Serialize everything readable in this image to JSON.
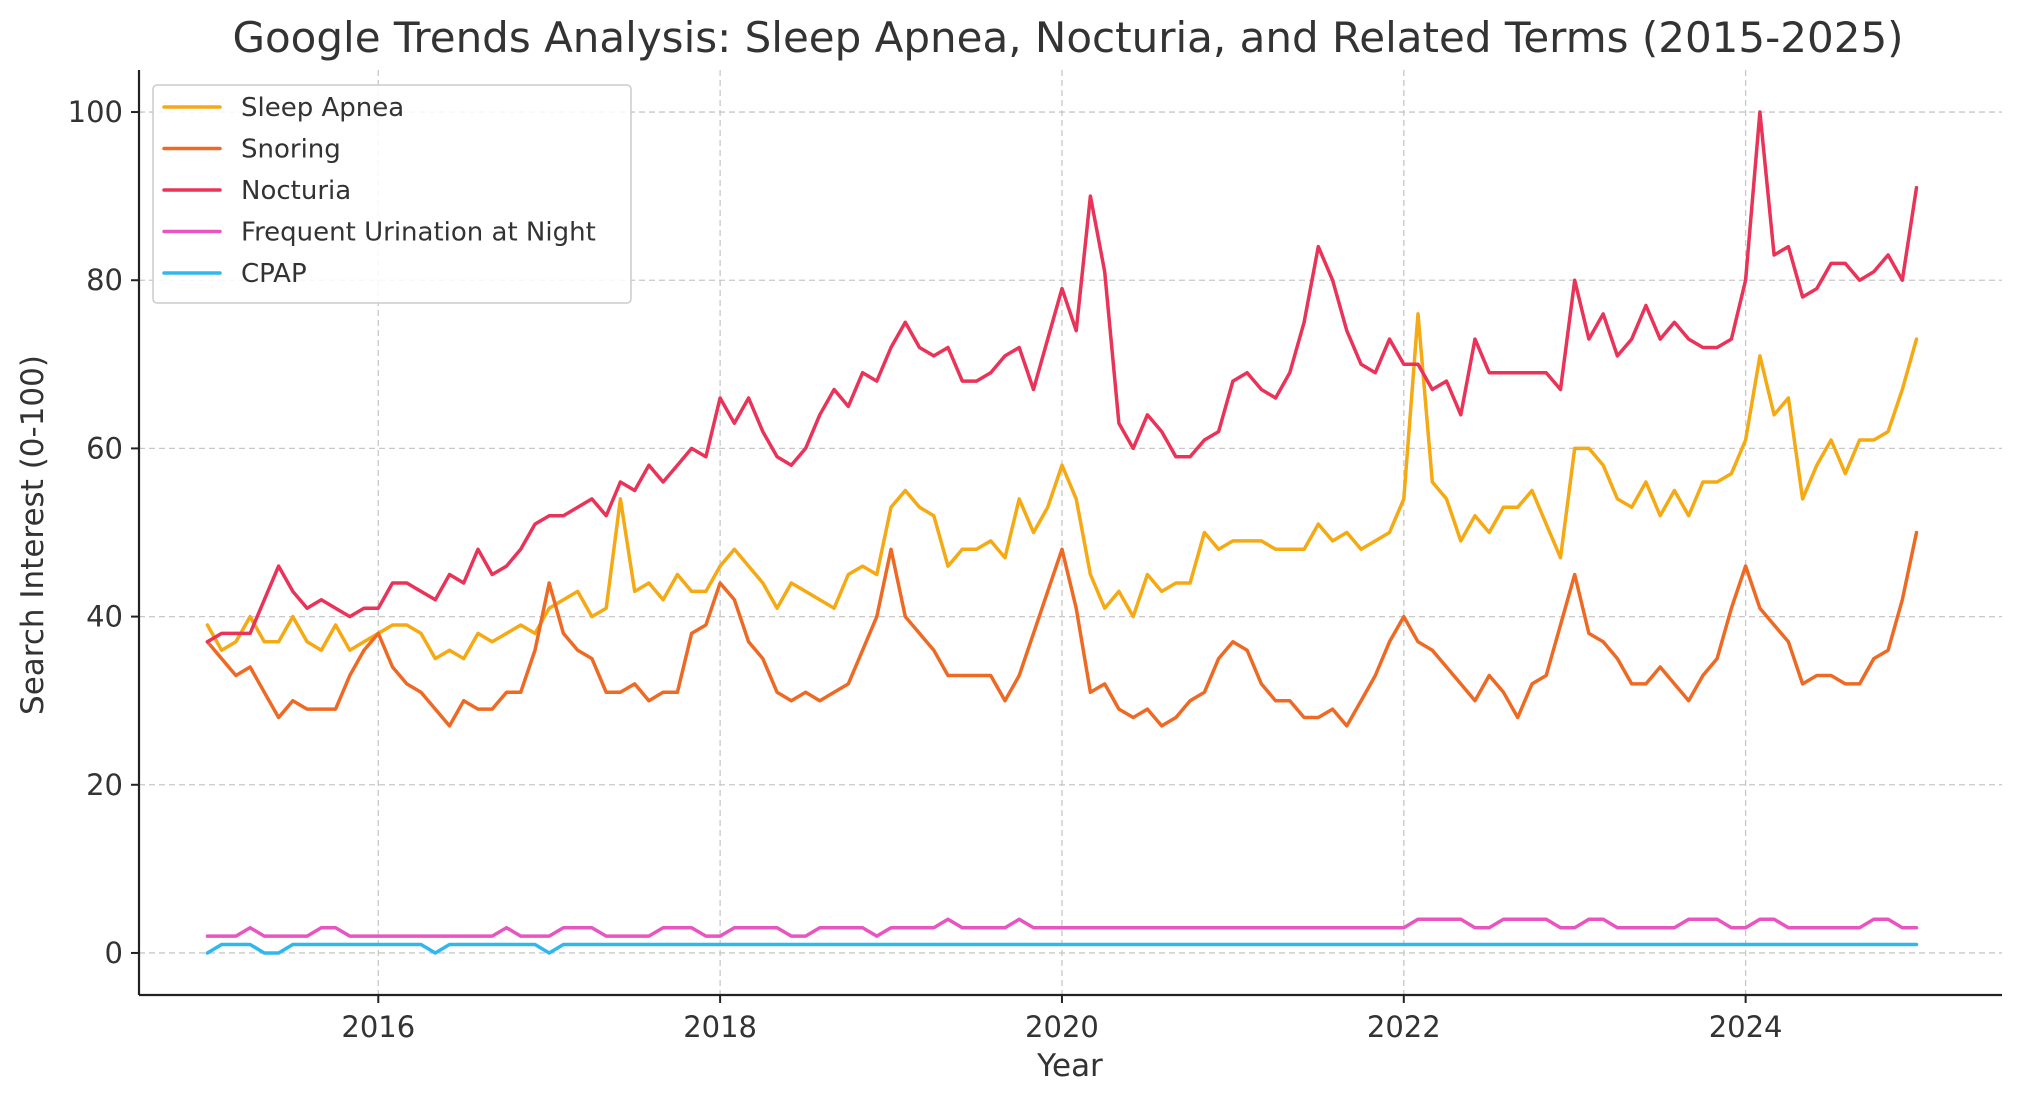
{
  "chart_data": {
    "type": "line",
    "title": "Google Trends Analysis: Sleep Apnea, Nocturia, and Related Terms (2015-2025)",
    "xlabel": "Year",
    "ylabel": "Search Interest (0-100)",
    "xlim": [
      2014.6,
      2025.5
    ],
    "ylim": [
      -5,
      105
    ],
    "x_start": 2015.0,
    "x_step": 0.0833333,
    "x_ticks": [
      2016,
      2018,
      2020,
      2022,
      2024
    ],
    "x_tick_labels": [
      "2016",
      "2018",
      "2020",
      "2022",
      "2024"
    ],
    "y_ticks": [
      0,
      20,
      40,
      60,
      80,
      100
    ],
    "y_tick_labels": [
      "0",
      "20",
      "40",
      "60",
      "80",
      "100"
    ],
    "grid": true,
    "legend_position": "upper-left",
    "series": [
      {
        "name": "Sleep Apnea",
        "color": "#F5A913",
        "values": [
          39,
          36,
          37,
          40,
          37,
          37,
          40,
          37,
          36,
          39,
          36,
          37,
          38,
          39,
          39,
          38,
          35,
          36,
          35,
          38,
          37,
          38,
          39,
          38,
          41,
          42,
          43,
          40,
          41,
          54,
          43,
          44,
          42,
          45,
          43,
          43,
          46,
          48,
          46,
          44,
          41,
          44,
          43,
          42,
          41,
          45,
          46,
          45,
          53,
          55,
          53,
          52,
          46,
          48,
          48,
          49,
          47,
          54,
          50,
          53,
          58,
          54,
          45,
          41,
          43,
          40,
          45,
          43,
          44,
          44,
          50,
          48,
          49,
          49,
          49,
          48,
          48,
          48,
          51,
          49,
          50,
          48,
          49,
          50,
          54,
          76,
          56,
          54,
          49,
          52,
          50,
          53,
          53,
          55,
          51,
          47,
          60,
          60,
          58,
          54,
          53,
          56,
          52,
          55,
          52,
          56,
          56,
          57,
          61,
          71,
          64,
          66,
          54,
          58,
          61,
          57,
          61,
          61,
          62,
          67,
          73
        ]
      },
      {
        "name": "Snoring",
        "color": "#EE6A24",
        "values": [
          37,
          35,
          33,
          34,
          31,
          28,
          30,
          29,
          29,
          29,
          33,
          36,
          38,
          34,
          32,
          31,
          29,
          27,
          30,
          29,
          29,
          31,
          31,
          36,
          44,
          38,
          36,
          35,
          31,
          31,
          32,
          30,
          31,
          31,
          38,
          39,
          44,
          42,
          37,
          35,
          31,
          30,
          31,
          30,
          31,
          32,
          36,
          40,
          48,
          40,
          38,
          36,
          33,
          33,
          33,
          33,
          30,
          33,
          38,
          43,
          48,
          41,
          31,
          32,
          29,
          28,
          29,
          27,
          28,
          30,
          31,
          35,
          37,
          36,
          32,
          30,
          30,
          28,
          28,
          29,
          27,
          30,
          33,
          37,
          40,
          37,
          36,
          34,
          32,
          30,
          33,
          31,
          28,
          32,
          33,
          39,
          45,
          38,
          37,
          35,
          32,
          32,
          34,
          32,
          30,
          33,
          35,
          41,
          46,
          41,
          39,
          37,
          32,
          33,
          33,
          32,
          32,
          35,
          36,
          42,
          50
        ]
      },
      {
        "name": "Nocturia",
        "color": "#E93358",
        "values": [
          37,
          38,
          38,
          38,
          42,
          46,
          43,
          41,
          42,
          41,
          40,
          41,
          41,
          44,
          44,
          43,
          42,
          45,
          44,
          48,
          45,
          46,
          48,
          51,
          52,
          52,
          53,
          54,
          52,
          56,
          55,
          58,
          56,
          58,
          60,
          59,
          66,
          63,
          66,
          62,
          59,
          58,
          60,
          64,
          67,
          65,
          69,
          68,
          72,
          75,
          72,
          71,
          72,
          68,
          68,
          69,
          71,
          72,
          67,
          73,
          79,
          74,
          90,
          81,
          63,
          60,
          64,
          62,
          59,
          59,
          61,
          62,
          68,
          69,
          67,
          66,
          69,
          75,
          84,
          80,
          74,
          70,
          69,
          73,
          70,
          70,
          67,
          68,
          64,
          73,
          69,
          69,
          69,
          69,
          69,
          67,
          80,
          73,
          76,
          71,
          73,
          77,
          73,
          75,
          73,
          72,
          72,
          73,
          80,
          100,
          83,
          84,
          78,
          79,
          82,
          82,
          80,
          81,
          83,
          80,
          91
        ]
      },
      {
        "name": "Frequent Urination at Night",
        "color": "#E955C0",
        "values": [
          2,
          2,
          2,
          3,
          2,
          2,
          2,
          2,
          3,
          3,
          2,
          2,
          2,
          2,
          2,
          2,
          2,
          2,
          2,
          2,
          2,
          3,
          2,
          2,
          2,
          3,
          3,
          3,
          2,
          2,
          2,
          2,
          3,
          3,
          3,
          2,
          2,
          3,
          3,
          3,
          3,
          2,
          2,
          3,
          3,
          3,
          3,
          2,
          3,
          3,
          3,
          3,
          4,
          3,
          3,
          3,
          3,
          4,
          3,
          3,
          3,
          3,
          3,
          3,
          3,
          3,
          3,
          3,
          3,
          3,
          3,
          3,
          3,
          3,
          3,
          3,
          3,
          3,
          3,
          3,
          3,
          3,
          3,
          3,
          3,
          4,
          4,
          4,
          4,
          3,
          3,
          4,
          4,
          4,
          4,
          3,
          3,
          4,
          4,
          3,
          3,
          3,
          3,
          3,
          4,
          4,
          4,
          3,
          3,
          4,
          4,
          3,
          3,
          3,
          3,
          3,
          3,
          4,
          4,
          3,
          3
        ]
      },
      {
        "name": "CPAP",
        "color": "#30B8EE",
        "values": [
          0,
          1,
          1,
          1,
          0,
          0,
          1,
          1,
          1,
          1,
          1,
          1,
          1,
          1,
          1,
          1,
          0,
          1,
          1,
          1,
          1,
          1,
          1,
          1,
          0,
          1,
          1,
          1,
          1,
          1,
          1,
          1,
          1,
          1,
          1,
          1,
          1,
          1,
          1,
          1,
          1,
          1,
          1,
          1,
          1,
          1,
          1,
          1,
          1,
          1,
          1,
          1,
          1,
          1,
          1,
          1,
          1,
          1,
          1,
          1,
          1,
          1,
          1,
          1,
          1,
          1,
          1,
          1,
          1,
          1,
          1,
          1,
          1,
          1,
          1,
          1,
          1,
          1,
          1,
          1,
          1,
          1,
          1,
          1,
          1,
          1,
          1,
          1,
          1,
          1,
          1,
          1,
          1,
          1,
          1,
          1,
          1,
          1,
          1,
          1,
          1,
          1,
          1,
          1,
          1,
          1,
          1,
          1,
          1,
          1,
          1,
          1,
          1,
          1,
          1,
          1,
          1,
          1,
          1,
          1,
          1
        ]
      }
    ]
  }
}
